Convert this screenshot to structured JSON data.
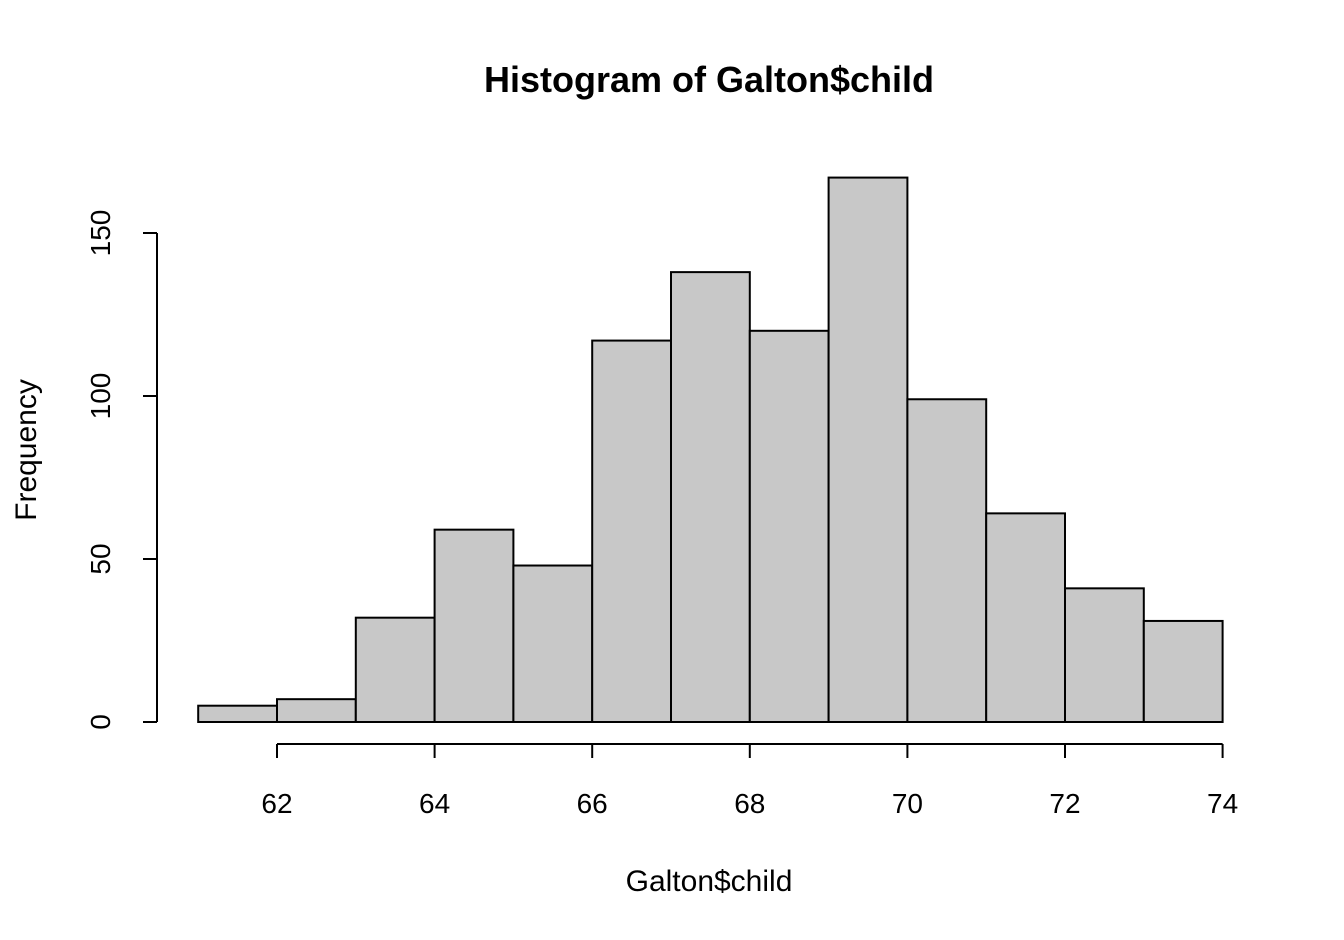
{
  "chart_data": {
    "type": "bar",
    "title": "Histogram of Galton$child",
    "xlabel": "Galton$child",
    "ylabel": "Frequency",
    "bar_color": "#c8c8c8",
    "edge_color": "#000000",
    "bins": [
      {
        "from": 61,
        "to": 62,
        "count": 5
      },
      {
        "from": 62,
        "to": 63,
        "count": 7
      },
      {
        "from": 63,
        "to": 64,
        "count": 32
      },
      {
        "from": 64,
        "to": 65,
        "count": 59
      },
      {
        "from": 65,
        "to": 66,
        "count": 48
      },
      {
        "from": 66,
        "to": 67,
        "count": 117
      },
      {
        "from": 67,
        "to": 68,
        "count": 138
      },
      {
        "from": 68,
        "to": 69,
        "count": 120
      },
      {
        "from": 69,
        "to": 70,
        "count": 167
      },
      {
        "from": 70,
        "to": 71,
        "count": 99
      },
      {
        "from": 71,
        "to": 72,
        "count": 64
      },
      {
        "from": 72,
        "to": 73,
        "count": 41
      },
      {
        "from": 73,
        "to": 74,
        "count": 31
      }
    ],
    "x_ticks": [
      62,
      64,
      66,
      68,
      70,
      72,
      74
    ],
    "y_ticks": [
      0,
      50,
      100,
      150
    ],
    "xlim": [
      61,
      74
    ],
    "ylim": [
      0,
      167
    ],
    "grid": false
  }
}
